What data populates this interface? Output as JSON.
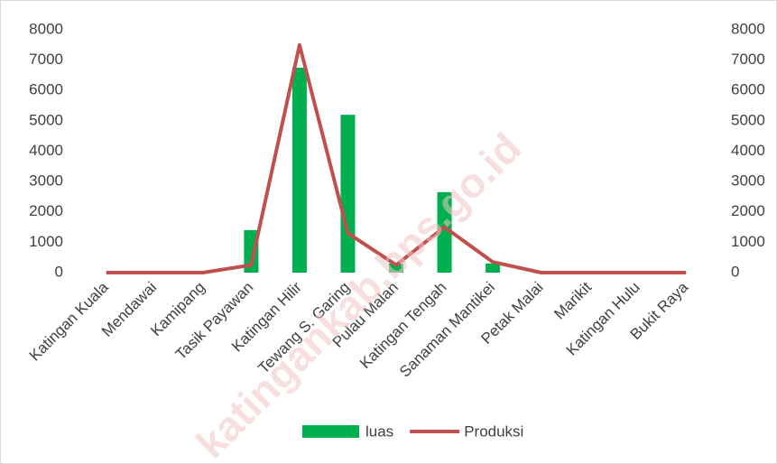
{
  "chart_data": {
    "type": "bar_line",
    "watermark": "katingankab.bps.go.id",
    "categories": [
      "Katingan Kuala",
      "Mendawai",
      "Kamipang",
      "Tasik Payawan",
      "Katingan Hilir",
      "Tewang S. Garing",
      "Pulau Malan",
      "Katingan Tengah",
      "Sanaman Mantikei",
      "Petak Malai",
      "Marikit",
      "Katingan Hulu",
      "Bukit Raya"
    ],
    "series": [
      {
        "name": "luas",
        "type": "bar",
        "color": "#00b050",
        "values": [
          0,
          0,
          0,
          1400,
          6750,
          5200,
          300,
          2650,
          300,
          0,
          0,
          0,
          0
        ]
      },
      {
        "name": "Produksi",
        "type": "line",
        "axis": "y2",
        "color": "#c0504d",
        "values": [
          0,
          0,
          0,
          250,
          7500,
          1300,
          250,
          1500,
          350,
          0,
          0,
          0,
          0
        ]
      }
    ],
    "ylim": [
      0,
      8000
    ],
    "yticks": [
      0,
      1000,
      2000,
      3000,
      4000,
      5000,
      6000,
      7000,
      8000
    ],
    "y2lim": [
      0,
      8000
    ],
    "y2ticks": [
      0,
      1000,
      2000,
      3000,
      4000,
      5000,
      6000,
      7000,
      8000
    ],
    "legend": "bottom"
  }
}
